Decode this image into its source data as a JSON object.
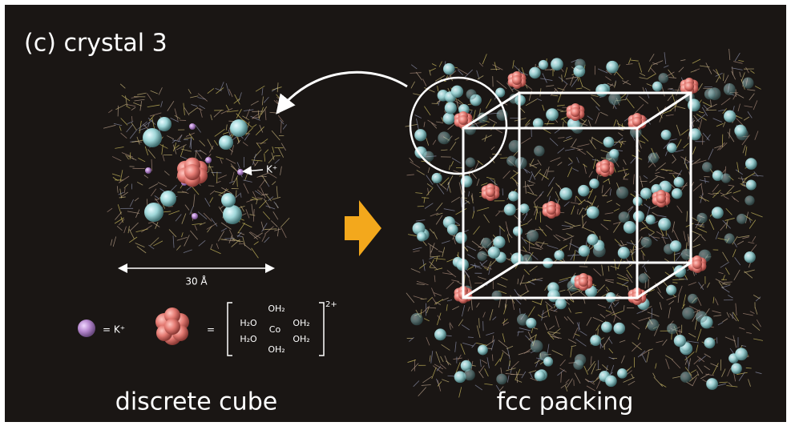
{
  "panel_label": "(c) crystal 3",
  "left": {
    "caption": "discrete cube",
    "ion_label": "K⁺",
    "scale_label": "30 Å"
  },
  "legend": {
    "k_label": "= K⁺",
    "equals": "=",
    "complex": {
      "top": "OH₂",
      "upper_left": "H₂O",
      "center": "Co",
      "upper_right": "OH₂",
      "lower_left": "H₂O",
      "lower_right": "OH₂",
      "bottom": "OH₂",
      "charge": "2+"
    }
  },
  "right": {
    "caption": "fcc packing"
  }
}
